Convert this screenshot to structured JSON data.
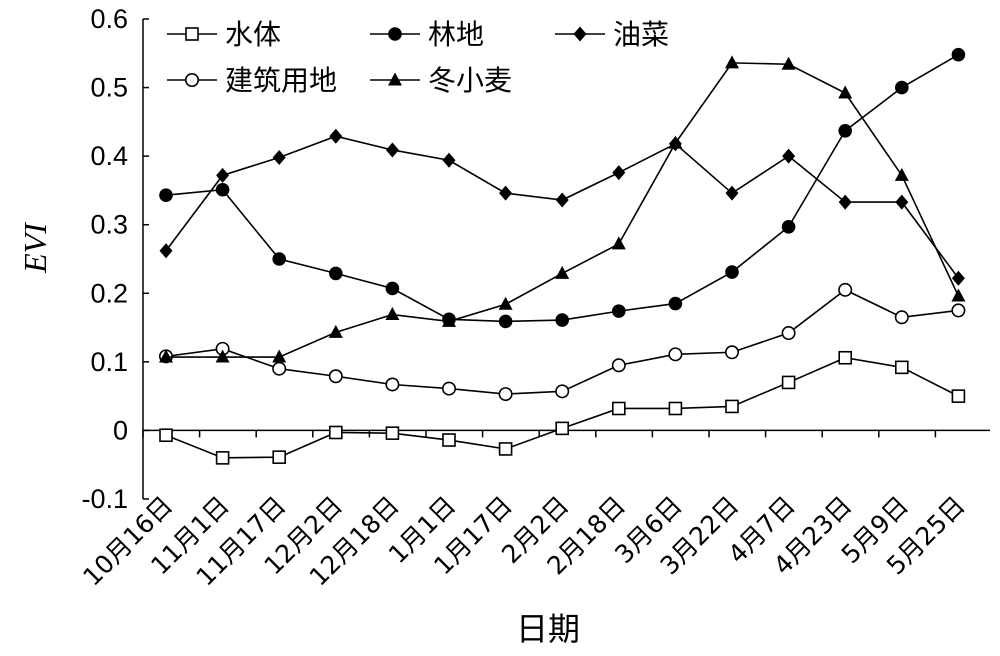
{
  "chart_data": {
    "type": "line",
    "title": "",
    "xlabel": "日期",
    "ylabel": "EVI",
    "ylim": [
      -0.1,
      0.6
    ],
    "yticks": [
      "-0.1",
      "0",
      "0.1",
      "0.2",
      "0.3",
      "0.4",
      "0.5",
      "0.6"
    ],
    "categories": [
      "10月16日",
      "11月1日",
      "11月17日",
      "12月2日",
      "12月18日",
      "1月1日",
      "1月17日",
      "2月2日",
      "2月18日",
      "3月6日",
      "3月22日",
      "4月7日",
      "4月23日",
      "5月9日",
      "5月25日"
    ],
    "grid": false,
    "legend_position": "top-left",
    "series": [
      {
        "name": "水体",
        "marker": "open-square",
        "color": "#000000",
        "values": [
          -0.007,
          -0.04,
          -0.039,
          -0.003,
          -0.004,
          -0.014,
          -0.027,
          0.003,
          0.032,
          0.032,
          0.035,
          0.07,
          0.106,
          0.092,
          0.05
        ]
      },
      {
        "name": "林地",
        "marker": "filled-circle",
        "color": "#000000",
        "values": [
          0.343,
          0.351,
          0.25,
          0.229,
          0.207,
          0.162,
          0.159,
          0.161,
          0.174,
          0.185,
          0.231,
          0.297,
          0.437,
          0.5,
          0.548
        ]
      },
      {
        "name": "油菜",
        "marker": "filled-diamond",
        "color": "#000000",
        "values": [
          0.262,
          0.372,
          0.398,
          0.429,
          0.409,
          0.394,
          0.346,
          0.336,
          0.376,
          0.418,
          0.346,
          0.4,
          0.333,
          0.333,
          0.222
        ]
      },
      {
        "name": "建筑用地",
        "marker": "open-circle",
        "color": "#000000",
        "values": [
          0.108,
          0.119,
          0.09,
          0.079,
          0.067,
          0.061,
          0.053,
          0.057,
          0.095,
          0.111,
          0.114,
          0.142,
          0.205,
          0.165,
          0.175
        ]
      },
      {
        "name": "冬小麦",
        "marker": "filled-triangle",
        "color": "#000000",
        "values": [
          0.107,
          0.107,
          0.107,
          0.143,
          0.169,
          0.159,
          0.184,
          0.229,
          0.272,
          0.419,
          0.536,
          0.534,
          0.492,
          0.372,
          0.196
        ]
      }
    ]
  }
}
